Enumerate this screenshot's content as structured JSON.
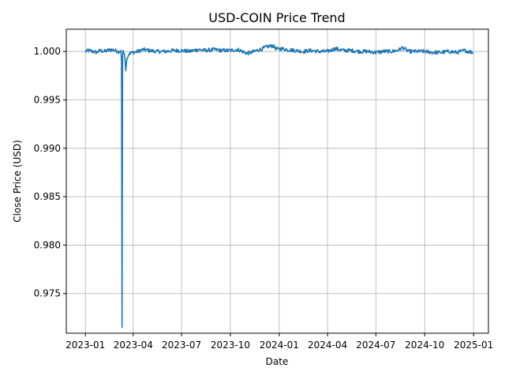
{
  "chart_data": {
    "type": "line",
    "title": "USD-COIN Price Trend",
    "xlabel": "Date",
    "ylabel": "Close Price (USD)",
    "xlim": [
      "2022-11-26",
      "2025-01-29"
    ],
    "ylim": [
      0.9709,
      1.0023
    ],
    "x_ticks": [
      "2023-01",
      "2023-04",
      "2023-07",
      "2023-10",
      "2024-01",
      "2024-04",
      "2024-07",
      "2024-10",
      "2025-01"
    ],
    "y_ticks": [
      "0.975",
      "0.980",
      "0.985",
      "0.990",
      "0.995",
      "1.000"
    ],
    "grid": true,
    "legend": "none",
    "line_color": "#1f77b4",
    "series": [
      {
        "x": [
          "2023-01-01",
          "2023-01-08",
          "2023-01-15",
          "2023-01-22",
          "2023-01-29",
          "2023-02-05",
          "2023-02-12",
          "2023-02-19",
          "2023-02-26",
          "2023-03-05",
          "2023-03-09",
          "2023-03-10",
          "2023-03-11",
          "2023-03-12",
          "2023-03-13",
          "2023-03-14",
          "2023-03-16",
          "2023-03-18",
          "2023-03-20",
          "2023-03-25",
          "2023-04-01",
          "2023-04-10",
          "2023-04-20",
          "2023-05-01",
          "2023-05-15",
          "2023-06-01",
          "2023-06-15",
          "2023-07-01",
          "2023-07-15",
          "2023-08-01",
          "2023-08-15",
          "2023-09-01",
          "2023-09-15",
          "2023-10-01",
          "2023-10-15",
          "2023-11-01",
          "2023-11-10",
          "2023-11-20",
          "2023-12-01",
          "2023-12-10",
          "2023-12-20",
          "2023-12-28",
          "2024-01-05",
          "2024-01-15",
          "2024-02-01",
          "2024-02-15",
          "2024-03-01",
          "2024-03-15",
          "2024-04-01",
          "2024-04-15",
          "2024-05-01",
          "2024-05-15",
          "2024-06-01",
          "2024-06-15",
          "2024-07-01",
          "2024-07-15",
          "2024-08-01",
          "2024-08-15",
          "2024-08-20",
          "2024-09-01",
          "2024-09-15",
          "2024-10-01",
          "2024-10-15",
          "2024-11-01",
          "2024-11-15",
          "2024-12-01",
          "2024-12-15",
          "2024-12-31"
        ],
        "values": [
          1.0,
          1.0001,
          1.0,
          0.9999,
          1.0001,
          1.0,
          1.0001,
          1.0002,
          1.0001,
          1.0,
          1.0001,
          0.999,
          0.9715,
          0.9995,
          1.0001,
          0.9999,
          0.9996,
          0.998,
          0.9992,
          0.9998,
          0.9999,
          1.0,
          1.0002,
          1.0001,
          1.0,
          1.0,
          1.0001,
          1.0001,
          1.0,
          1.0002,
          1.0001,
          1.0002,
          1.0001,
          1.0001,
          1.0002,
          0.9998,
          0.9999,
          1.0001,
          1.0003,
          1.0005,
          1.0006,
          1.0002,
          1.0003,
          1.0002,
          1.0001,
          1.0,
          1.0001,
          1.0,
          1.0,
          1.0003,
          1.0001,
          1.0001,
          1.0,
          1.0,
          0.9999,
          1.0,
          1.0,
          1.0002,
          1.0004,
          1.0,
          1.0,
          1.0,
          0.9999,
          0.9999,
          1.0,
          0.9999,
          1.0001,
          0.9999
        ]
      }
    ]
  }
}
